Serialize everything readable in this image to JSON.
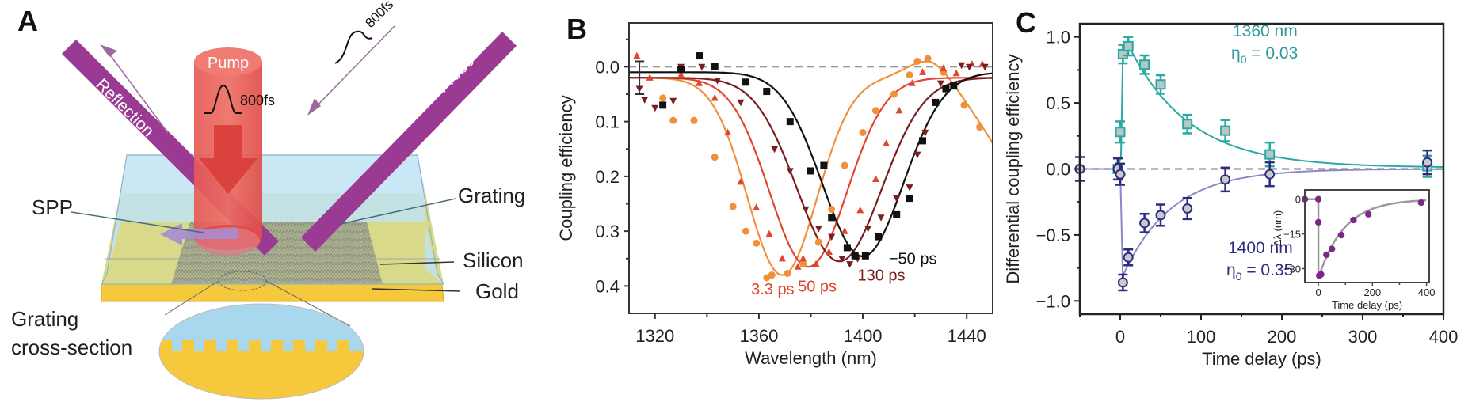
{
  "panels": {
    "a": {
      "letter": "A",
      "labels": {
        "pump": "Pump",
        "pump_pulse": "800fs",
        "probe": "Probe",
        "probe_pulse": "800fs",
        "reflection": "Reflection",
        "spp": "SPP",
        "grating": "Grating",
        "silicon": "Silicon",
        "gold": "Gold",
        "cross_section_line1": "Grating",
        "cross_section_line2": "cross-section"
      },
      "colors": {
        "beam": "#9b3a93",
        "pump": "#e5413f",
        "silicon": "#d9d98a",
        "gold": "#f6c83c",
        "cladding": "#bfe3f2",
        "spp": "#a98bd0"
      }
    },
    "b": {
      "letter": "B"
    },
    "c": {
      "letter": "C",
      "annotations": {
        "s1360_line1": "1360 nm",
        "s1360_eta_sym": "η",
        "s1360_eta_sub": "0",
        "s1360_eta_val": " = 0.03",
        "s1400_line1": "1400 nm",
        "s1400_eta_sym": "η",
        "s1400_eta_sub": "0",
        "s1400_eta_val": " = 0.35"
      }
    }
  },
  "chart_data": [
    {
      "id": "B",
      "type": "scatter",
      "title": "",
      "xlabel": "Wavelength (nm)",
      "ylabel": "Coupling efficiency",
      "xlim": [
        1310,
        1450
      ],
      "ylim": [
        0.45,
        -0.08
      ],
      "y_inverted": true,
      "xticks": [
        1320,
        1360,
        1400,
        1440
      ],
      "xminor": [
        1340,
        1380,
        1420
      ],
      "yticks": [
        0.0,
        0.1,
        0.2,
        0.3,
        0.4
      ],
      "yminor": [
        -0.05,
        0.05,
        0.15,
        0.25,
        0.35
      ],
      "ytick_labels": [
        "0.0",
        "0.1",
        "0.2",
        "0.3",
        "0.4"
      ],
      "reference_line": 0.0,
      "error_bar": {
        "x": 1314,
        "y": 0.02,
        "err": 0.03
      },
      "series": [
        {
          "name": "3.3 ps",
          "color": "#f0913a",
          "marker": "circle",
          "fit": {
            "base": 0.02,
            "depth": 0.36,
            "center": 1369,
            "width": 19,
            "tail": {
              "peak_x": 1425,
              "peak_y": -0.005,
              "end_x": 1450,
              "end_y": 0.12
            }
          },
          "points": [
            [
              1323,
              0.057
            ],
            [
              1327,
              0.098
            ],
            [
              1335,
              0.098
            ],
            [
              1343,
              0.165
            ],
            [
              1350,
              0.255
            ],
            [
              1355,
              0.3
            ],
            [
              1359,
              0.322
            ],
            [
              1363,
              0.385
            ],
            [
              1365,
              0.38
            ],
            [
              1371,
              0.377
            ],
            [
              1377,
              0.36
            ],
            [
              1383,
              0.32
            ],
            [
              1388,
              0.26
            ],
            [
              1393,
              0.18
            ],
            [
              1400,
              0.12
            ],
            [
              1405,
              0.08
            ],
            [
              1412,
              0.05
            ],
            [
              1418,
              0.015
            ],
            [
              1421,
              -0.01
            ],
            [
              1425,
              -0.015
            ],
            [
              1431,
              0.01
            ],
            [
              1439,
              0.07
            ],
            [
              1445,
              0.11
            ]
          ]
        },
        {
          "name": "50 ps",
          "color": "#e0462e",
          "marker": "triangle-up",
          "fit": {
            "base": 0.02,
            "depth": 0.345,
            "center": 1379,
            "width": 21
          },
          "points": [
            [
              1313,
              -0.02
            ],
            [
              1318,
              0.02
            ],
            [
              1330,
              0.015
            ],
            [
              1337,
              0.03
            ],
            [
              1343,
              0.057
            ],
            [
              1348,
              0.12
            ],
            [
              1353,
              0.21
            ],
            [
              1359,
              0.257
            ],
            [
              1364,
              0.305
            ],
            [
              1369,
              0.35
            ],
            [
              1375,
              0.365
            ],
            [
              1377,
              0.35
            ],
            [
              1382,
              0.36
            ],
            [
              1387,
              0.338
            ],
            [
              1393,
              0.3
            ],
            [
              1399,
              0.262
            ],
            [
              1405,
              0.205
            ],
            [
              1409,
              0.14
            ],
            [
              1414,
              0.08
            ],
            [
              1419,
              0.03
            ],
            [
              1423,
              0.01
            ],
            [
              1431,
              0.003
            ],
            [
              1436,
              0.012
            ],
            [
              1442,
              -0.005
            ],
            [
              1446,
              -0.005
            ]
          ]
        },
        {
          "name": "130 ps",
          "color": "#7a1f1f",
          "marker": "triangle-down",
          "fit": {
            "base": 0.02,
            "depth": 0.335,
            "center": 1391,
            "width": 23
          },
          "points": [
            [
              1314,
              0.04
            ],
            [
              1316,
              0.06
            ],
            [
              1320,
              0.075
            ],
            [
              1327,
              0.062
            ],
            [
              1330,
              0.0
            ],
            [
              1338,
              0.0
            ],
            [
              1344,
              0.025
            ],
            [
              1353,
              0.065
            ],
            [
              1366,
              0.15
            ],
            [
              1372,
              0.19
            ],
            [
              1378,
              0.26
            ],
            [
              1383,
              0.295
            ],
            [
              1388,
              0.31
            ],
            [
              1392,
              0.35
            ],
            [
              1395,
              0.36
            ],
            [
              1398,
              0.35
            ],
            [
              1402,
              0.295
            ],
            [
              1407,
              0.275
            ],
            [
              1413,
              0.24
            ],
            [
              1418,
              0.22
            ],
            [
              1421,
              0.16
            ],
            [
              1424,
              0.12
            ],
            [
              1430,
              0.03
            ],
            [
              1438,
              -0.003
            ],
            [
              1441,
              0.0
            ],
            [
              1447,
              0.0
            ]
          ]
        },
        {
          "name": "−50 ps",
          "color": "#111111",
          "marker": "square",
          "fit": {
            "base": 0.01,
            "depth": 0.336,
            "center": 1400,
            "width": 22
          },
          "points": [
            [
              1323,
              0.07
            ],
            [
              1330,
              0.005
            ],
            [
              1337,
              -0.02
            ],
            [
              1343,
              0.0
            ],
            [
              1355,
              0.028
            ],
            [
              1363,
              0.045
            ],
            [
              1372,
              0.1
            ],
            [
              1380,
              0.19
            ],
            [
              1385,
              0.18
            ],
            [
              1388,
              0.275
            ],
            [
              1394,
              0.33
            ],
            [
              1397,
              0.345
            ],
            [
              1401,
              0.345
            ],
            [
              1406,
              0.31
            ],
            [
              1413,
              0.27
            ],
            [
              1418,
              0.24
            ],
            [
              1423,
              0.135
            ],
            [
              1428,
              0.065
            ],
            [
              1432,
              0.04
            ],
            [
              1435,
              0.035
            ]
          ]
        }
      ],
      "curve_labels": [
        {
          "text": "3.3 ps",
          "color": "#e0462e",
          "x": 1357,
          "y": 0.415
        },
        {
          "text": "50 ps",
          "color": "#e0462e",
          "x": 1375,
          "y": 0.41
        },
        {
          "text": "130 ps",
          "color": "#7a1f1f",
          "x": 1398,
          "y": 0.39
        },
        {
          "text": "−50 ps",
          "color": "#111111",
          "x": 1410,
          "y": 0.36
        }
      ]
    },
    {
      "id": "C",
      "type": "scatter",
      "title": "",
      "xlabel": "Time delay (ps)",
      "ylabel": "Differential coupling efficiency",
      "xlim": [
        -50,
        400
      ],
      "ylim": [
        -1.1,
        1.1
      ],
      "xticks": [
        0,
        100,
        200,
        300,
        400
      ],
      "xminor": [
        -50,
        50,
        150,
        250,
        350
      ],
      "yticks": [
        1.0,
        0.5,
        0.0,
        -0.5,
        -1.0
      ],
      "ytick_labels": [
        "1.0",
        "0.5",
        "0.0",
        "−0.5",
        "−1.0"
      ],
      "yminor": [
        0.75,
        0.25,
        -0.25,
        -0.75
      ],
      "reference_line": 0.0,
      "series": [
        {
          "name": "1360 nm",
          "eta0": 0.03,
          "color": "#2aa9a3",
          "fill": "#b9c7c4",
          "marker": "square",
          "fit": {
            "rise_t": 3.3,
            "peak": 0.93,
            "peak_t": 10,
            "tau": 75
          },
          "points": [
            [
              -3,
              0.0,
              0.08
            ],
            [
              0,
              0.28,
              0.08
            ],
            [
              3.3,
              0.87,
              0.07
            ],
            [
              10,
              0.93,
              0.07
            ],
            [
              30,
              0.79,
              0.07
            ],
            [
              50,
              0.64,
              0.07
            ],
            [
              83,
              0.34,
              0.07
            ],
            [
              130,
              0.29,
              0.08
            ],
            [
              185,
              0.11,
              0.09
            ],
            [
              380,
              0.02,
              0.08
            ]
          ]
        },
        {
          "name": "1400 nm",
          "eta0": 0.35,
          "color": "#2d2d7f",
          "line": "#8c87c9",
          "fill": "#c9c9c9",
          "marker": "circle",
          "fit": {
            "rise_t": 3.3,
            "trough": -0.86,
            "tau": 60
          },
          "points": [
            [
              -50,
              0.0,
              0.09
            ],
            [
              -3,
              0.0,
              0.08
            ],
            [
              0,
              -0.04,
              0.08
            ],
            [
              3.3,
              -0.86,
              0.06
            ],
            [
              10,
              -0.67,
              0.06
            ],
            [
              30,
              -0.41,
              0.07
            ],
            [
              50,
              -0.35,
              0.08
            ],
            [
              83,
              -0.3,
              0.08
            ],
            [
              130,
              -0.08,
              0.09
            ],
            [
              185,
              -0.04,
              0.09
            ],
            [
              380,
              0.05,
              0.09
            ]
          ]
        }
      ],
      "inset": {
        "type": "line",
        "xlabel": "Time delay (ps)",
        "ylabel": "Δλ (nm)",
        "xlim": [
          -50,
          410
        ],
        "ylim": [
          -36,
          4
        ],
        "xticks": [
          0,
          200,
          400
        ],
        "xminor": [
          100,
          300
        ],
        "yticks": [
          0,
          -15,
          -30
        ],
        "ytick_labels": [
          "0",
          "−15",
          "−30"
        ],
        "color": "#7a2a85",
        "line_color": "#9a9a9a",
        "points": [
          [
            -50,
            0
          ],
          [
            0,
            0
          ],
          [
            0,
            -10
          ],
          [
            3.3,
            -33
          ],
          [
            10,
            -32.5
          ],
          [
            30,
            -24
          ],
          [
            50,
            -21.5
          ],
          [
            85,
            -15.5
          ],
          [
            130,
            -9
          ],
          [
            185,
            -6.5
          ],
          [
            380,
            -1.5
          ]
        ]
      }
    }
  ]
}
